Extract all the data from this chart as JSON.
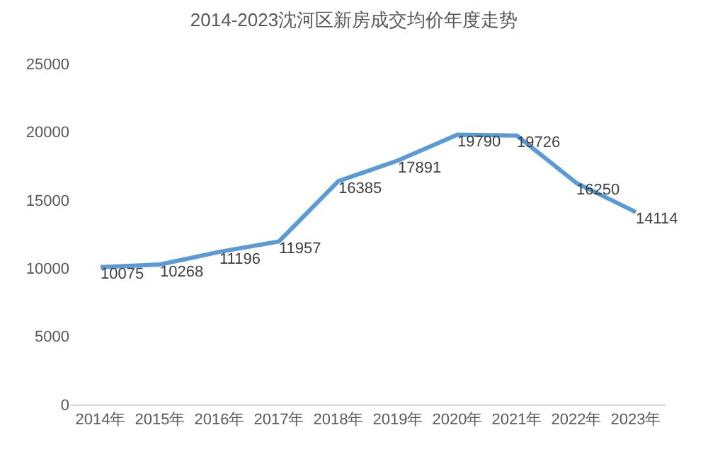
{
  "chart_data": {
    "type": "line",
    "title": "2014-2023沈河区新房成交均价年度走势",
    "categories": [
      "2014年",
      "2015年",
      "2016年",
      "2017年",
      "2018年",
      "2019年",
      "2020年",
      "2021年",
      "2022年",
      "2023年"
    ],
    "series": [
      {
        "color": "#5b9bd5",
        "values": [
          10075,
          10268,
          11196,
          11957,
          16385,
          17891,
          19790,
          19726,
          16250,
          14114
        ]
      }
    ],
    "ylim": [
      0,
      25000
    ],
    "yticks": [
      0,
      5000,
      10000,
      15000,
      20000,
      25000
    ],
    "marker": "none",
    "line_style": "solid",
    "data_labels": true
  }
}
